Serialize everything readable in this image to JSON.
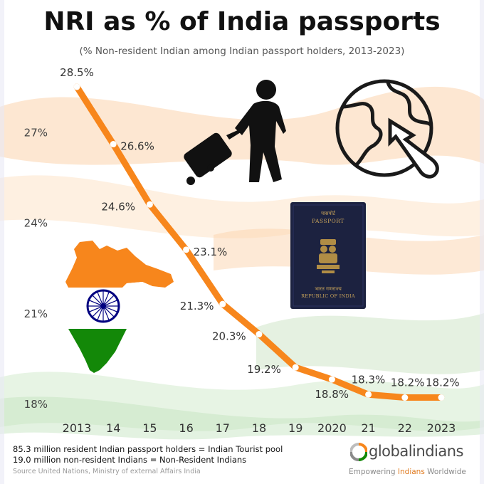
{
  "title": "NRI as % of India passports",
  "subtitle": "(% Non-resident Indian among Indian passport holders, 2013-2023)",
  "chart_data": {
    "type": "line",
    "categories": [
      "2013",
      "14",
      "15",
      "16",
      "17",
      "18",
      "19",
      "2020",
      "21",
      "22",
      "2023"
    ],
    "values": [
      28.5,
      26.6,
      24.6,
      23.1,
      21.3,
      20.3,
      19.2,
      18.8,
      18.3,
      18.2,
      18.2
    ],
    "data_labels": [
      "28.5%",
      "26.6%",
      "24.6%",
      "23.1%",
      "21.3%",
      "20.3%",
      "19.2%",
      "18.8%",
      "18.3%",
      "18.2%",
      "18.2%"
    ],
    "y_ticks": [
      18,
      21,
      24,
      27
    ],
    "y_tick_labels": [
      "18%",
      "21%",
      "24%",
      "27%"
    ],
    "ylim": [
      18,
      28.5
    ],
    "grid": false,
    "legend": "none",
    "line_color": "#f7861c",
    "point_color": "#ffffff"
  },
  "passport": {
    "top_text": "पासपोर्ट",
    "title": "PASSPORT",
    "bottom_hindi": "भारत गणराज्य",
    "bottom_text": "REPUBLIC OF INDIA"
  },
  "footer": {
    "line1": "85.3 million resident Indian passport holders = Indian Tourist pool",
    "line2": "19.0 million non-resident  Indians = Non-Resident Indians",
    "source": "Source United Nations, Ministry of external Affairs India"
  },
  "brand": {
    "name": "globalindians",
    "tag_pre": "Empowering ",
    "tag_mid": "Indians",
    "tag_post": " Worldwide"
  },
  "colors": {
    "saffron": "#f7861c",
    "green": "#138808",
    "navy": "#1c2240",
    "chakra": "#000080"
  }
}
